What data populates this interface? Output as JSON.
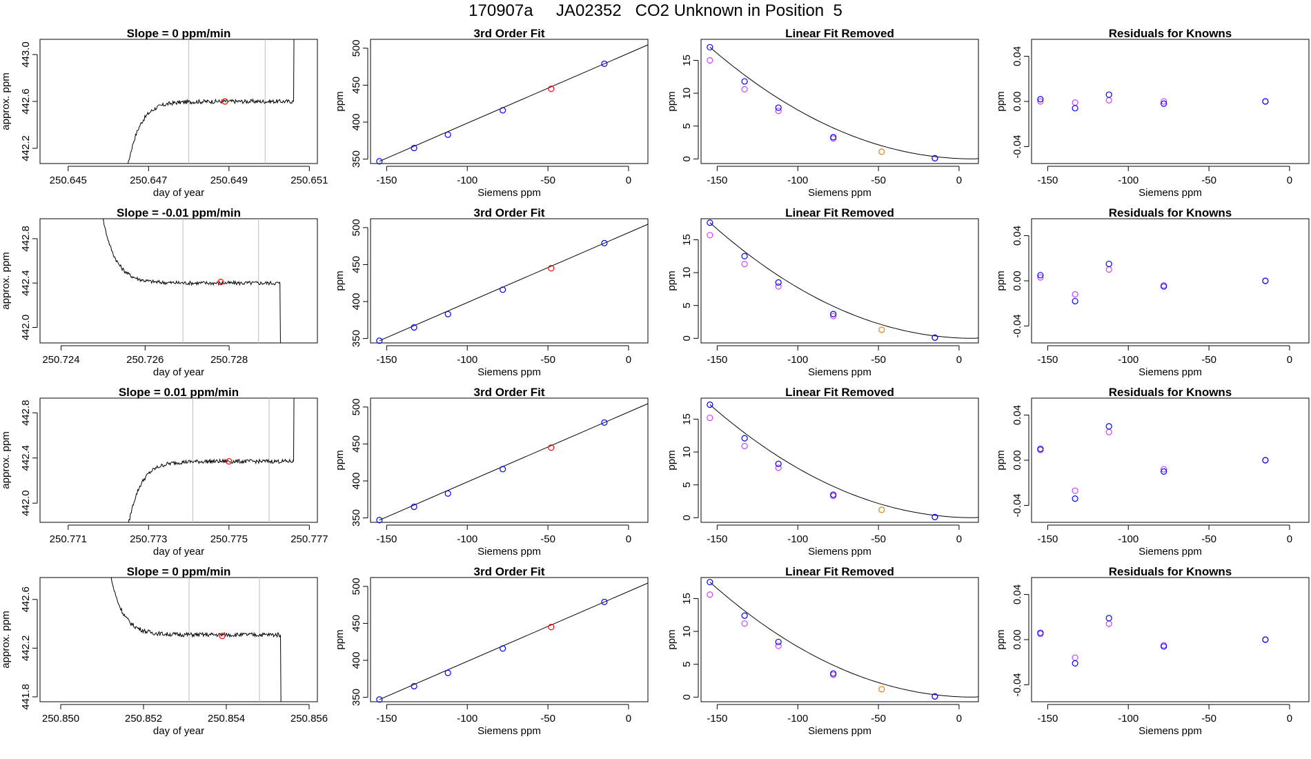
{
  "page": {
    "title": "170907a     JA02352   CO2 Unknown in Position  5"
  },
  "colors": {
    "known_fit": "#0000ff",
    "known_raw": "#cc44ff",
    "unknown": "#ff0000",
    "unknown_lfr": "#ff7700",
    "line": "#000000",
    "window": "#bbbbbb"
  },
  "common": {
    "fit_title": "3rd Order Fit",
    "lfr_title": "Linear Fit Removed",
    "resid_title": "Residuals for Knowns",
    "x_label": "Siemens ppm",
    "y_label": "ppm",
    "ts_xlabel": "day of year",
    "ts_ylabel": "approx. ppm",
    "x_ticks": [
      -150,
      -100,
      -50,
      0
    ],
    "x_range": [
      -160,
      12
    ],
    "fit_yticks": [
      350,
      400,
      450,
      500
    ],
    "fit_yrange": [
      344,
      512
    ],
    "lfr_yticks": [
      0,
      5,
      10,
      15
    ],
    "resid_yticks": [
      -0.04,
      0.0,
      0.04
    ],
    "resid_yrange": [
      -0.055,
      0.055
    ],
    "knowns_x": [
      -154.5,
      -133,
      -112,
      -78,
      -15
    ],
    "unknown_x": -48,
    "fit_x_end": 12
  },
  "chart_data": [
    {
      "row": 1,
      "timeseries": {
        "type": "line",
        "title": "Slope =  0  ppm/min",
        "xlabel": "day of year",
        "ylabel": "approx. ppm",
        "x_ticks": [
          "250.645",
          "250.647",
          "250.649",
          "250.651"
        ],
        "x_tick_values": [
          250.645,
          250.647,
          250.649,
          250.651
        ],
        "xlim": [
          250.6443,
          250.6512
        ],
        "y_ticks": [
          "442.2",
          "442.6",
          "443.0"
        ],
        "y_tick_values": [
          442.2,
          442.6,
          443.0
        ],
        "ylim": [
          442.07,
          443.13
        ],
        "window": [
          250.648,
          250.6499
        ],
        "flat_level": 442.6,
        "start_level": 441.6,
        "end_level": 443.6,
        "x_start": 250.6463,
        "x_end": 250.6506,
        "rise_fast": 3.0,
        "mean_point": [
          250.6489,
          442.6
        ]
      },
      "fit": {
        "type": "scatter",
        "knowns_y": [
          347,
          365,
          383,
          416,
          479
        ],
        "unknown_y": 445
      },
      "lfr": {
        "type": "scatter",
        "ylim": [
          -0.7,
          18.2
        ],
        "knowns_fit": [
          17.0,
          11.8,
          7.8,
          3.3,
          0.1
        ],
        "knowns_raw": [
          15.0,
          10.6,
          7.3,
          3.1,
          0.1
        ],
        "unknown": 1.1
      },
      "resid": {
        "type": "scatter",
        "fit": [
          0.002,
          -0.006,
          0.006,
          -0.002,
          0.0
        ],
        "raw": [
          0.0,
          -0.001,
          0.001,
          0.0,
          0.0
        ]
      }
    },
    {
      "row": 2,
      "timeseries": {
        "type": "line",
        "title": "Slope =  -0.01  ppm/min",
        "xlabel": "day of year",
        "ylabel": "approx. ppm",
        "x_ticks": [
          "250.724",
          "250.726",
          "250.728"
        ],
        "x_tick_values": [
          250.724,
          250.726,
          250.728
        ],
        "xlim": [
          250.7235,
          250.7301
        ],
        "y_ticks": [
          "442.0",
          "442.4",
          "442.8"
        ],
        "y_tick_values": [
          442.0,
          442.4,
          442.8
        ],
        "ylim": [
          441.86,
          442.98
        ],
        "window": [
          250.7269,
          250.7287
        ],
        "flat_level": 442.4,
        "start_level": 443.2,
        "end_level": 441.6,
        "x_start": 250.7249,
        "x_end": 250.7292,
        "rise_fast": 3.0,
        "mean_point": [
          250.7278,
          442.41
        ]
      },
      "fit": {
        "type": "scatter",
        "knowns_y": [
          347,
          365,
          383,
          416,
          479
        ],
        "unknown_y": 445
      },
      "lfr": {
        "type": "scatter",
        "ylim": [
          -0.7,
          18.2
        ],
        "knowns_fit": [
          17.6,
          12.5,
          8.5,
          3.7,
          0.1
        ],
        "knowns_raw": [
          15.7,
          11.3,
          7.9,
          3.4,
          0.1
        ],
        "unknown": 1.3
      },
      "resid": {
        "type": "scatter",
        "fit": [
          0.005,
          -0.018,
          0.015,
          -0.005,
          0.0
        ],
        "raw": [
          0.003,
          -0.012,
          0.01,
          -0.004,
          0.0
        ]
      }
    },
    {
      "row": 3,
      "timeseries": {
        "type": "line",
        "title": "Slope =  0.01  ppm/min",
        "xlabel": "day of year",
        "ylabel": "approx. ppm",
        "x_ticks": [
          "250.771",
          "250.773",
          "250.775",
          "250.777"
        ],
        "x_tick_values": [
          250.771,
          250.773,
          250.775,
          250.777
        ],
        "xlim": [
          250.7703,
          250.7772
        ],
        "y_ticks": [
          "442.0",
          "442.4",
          "442.8"
        ],
        "y_tick_values": [
          442.0,
          442.4,
          442.8
        ],
        "ylim": [
          441.83,
          442.93
        ],
        "window": [
          250.7741,
          250.776
        ],
        "flat_level": 442.37,
        "start_level": 441.3,
        "end_level": 443.4,
        "x_start": 250.7723,
        "x_end": 250.7766,
        "rise_fast": 3.0,
        "mean_point": [
          250.775,
          442.37
        ]
      },
      "fit": {
        "type": "scatter",
        "knowns_y": [
          347,
          365,
          383,
          416,
          479
        ],
        "unknown_y": 445
      },
      "lfr": {
        "type": "scatter",
        "ylim": [
          -0.7,
          18.2
        ],
        "knowns_fit": [
          17.2,
          12.1,
          8.2,
          3.5,
          0.1
        ],
        "knowns_raw": [
          15.2,
          10.9,
          7.6,
          3.3,
          0.1
        ],
        "unknown": 1.2
      },
      "resid": {
        "type": "scatter",
        "fit": [
          0.01,
          -0.034,
          0.03,
          -0.01,
          0.0
        ],
        "raw": [
          0.009,
          -0.027,
          0.025,
          -0.008,
          0.0
        ]
      }
    },
    {
      "row": 4,
      "timeseries": {
        "type": "line",
        "title": "Slope =  0  ppm/min",
        "xlabel": "day of year",
        "ylabel": "approx. ppm",
        "x_ticks": [
          "250.850",
          "250.852",
          "250.854",
          "250.856"
        ],
        "x_tick_values": [
          250.85,
          250.852,
          250.854,
          250.856
        ],
        "xlim": [
          250.8495,
          250.8562
        ],
        "y_ticks": [
          "441.8",
          "442.2",
          "442.6"
        ],
        "y_tick_values": [
          441.8,
          442.2,
          442.6
        ],
        "ylim": [
          441.76,
          442.78
        ],
        "window": [
          250.8531,
          250.8548
        ],
        "flat_level": 442.31,
        "start_level": 443.0,
        "end_level": 441.5,
        "x_start": 250.8511,
        "x_end": 250.8553,
        "rise_fast": 3.0,
        "mean_point": [
          250.8539,
          442.3
        ]
      },
      "fit": {
        "type": "scatter",
        "knowns_y": [
          347,
          365,
          383,
          416,
          479
        ],
        "unknown_y": 445
      },
      "lfr": {
        "type": "scatter",
        "ylim": [
          -0.7,
          18.2
        ],
        "knowns_fit": [
          17.5,
          12.4,
          8.4,
          3.6,
          0.1
        ],
        "knowns_raw": [
          15.6,
          11.2,
          7.8,
          3.4,
          0.1
        ],
        "unknown": 1.2
      },
      "resid": {
        "type": "scatter",
        "fit": [
          0.006,
          -0.021,
          0.019,
          -0.006,
          0.0
        ],
        "raw": [
          0.005,
          -0.016,
          0.014,
          -0.005,
          0.0
        ]
      }
    }
  ]
}
